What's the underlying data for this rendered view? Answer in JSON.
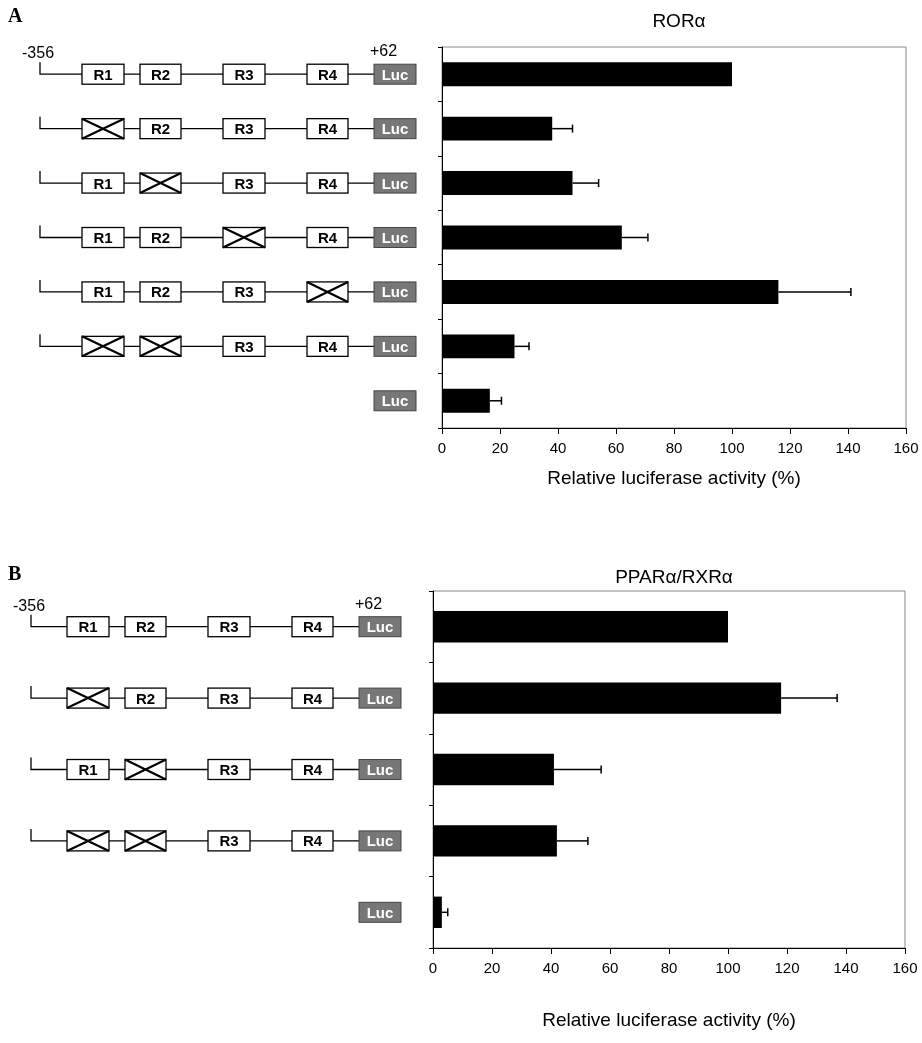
{
  "chart_data": [
    {
      "type": "bar",
      "orientation": "horizontal",
      "title": "RORα",
      "xlabel": "Relative luciferase activity (%)",
      "categories": [
        null,
        null,
        null,
        null,
        null,
        null,
        null
      ],
      "values": [
        100,
        38,
        45,
        62,
        116,
        25,
        16.5
      ],
      "errors": [
        null,
        [
          38,
          45
        ],
        [
          45,
          54
        ],
        [
          62,
          71
        ],
        [
          116,
          141
        ],
        [
          25,
          30
        ],
        [
          16.5,
          20.5
        ]
      ],
      "color": "#000000",
      "xlim": [
        0,
        160
      ],
      "xticks": [
        0,
        20,
        40,
        60,
        80,
        100,
        120,
        140,
        160
      ],
      "grid": false,
      "annotations": [
        "A",
        "-356",
        "+62",
        "R1",
        "R2",
        "R3",
        "R4",
        "Luc"
      ]
    },
    {
      "type": "bar",
      "orientation": "horizontal",
      "title": "PPARα/RXRα",
      "xlabel": "Relative luciferase activity (%)",
      "categories": [
        null,
        null,
        null,
        null,
        null
      ],
      "values": [
        100,
        118,
        41,
        42,
        3
      ],
      "errors": [
        null,
        [
          118,
          137
        ],
        [
          41,
          57
        ],
        [
          42,
          52.5
        ],
        [
          3,
          5
        ]
      ],
      "color": "#000000",
      "xlim": [
        0,
        160
      ],
      "xticks": [
        0,
        20,
        40,
        60,
        80,
        100,
        120,
        140,
        160
      ],
      "grid": false,
      "annotations": [
        "B",
        "-356",
        "+62",
        "R1",
        "R2",
        "R3",
        "R4",
        "Luc"
      ]
    }
  ]
}
